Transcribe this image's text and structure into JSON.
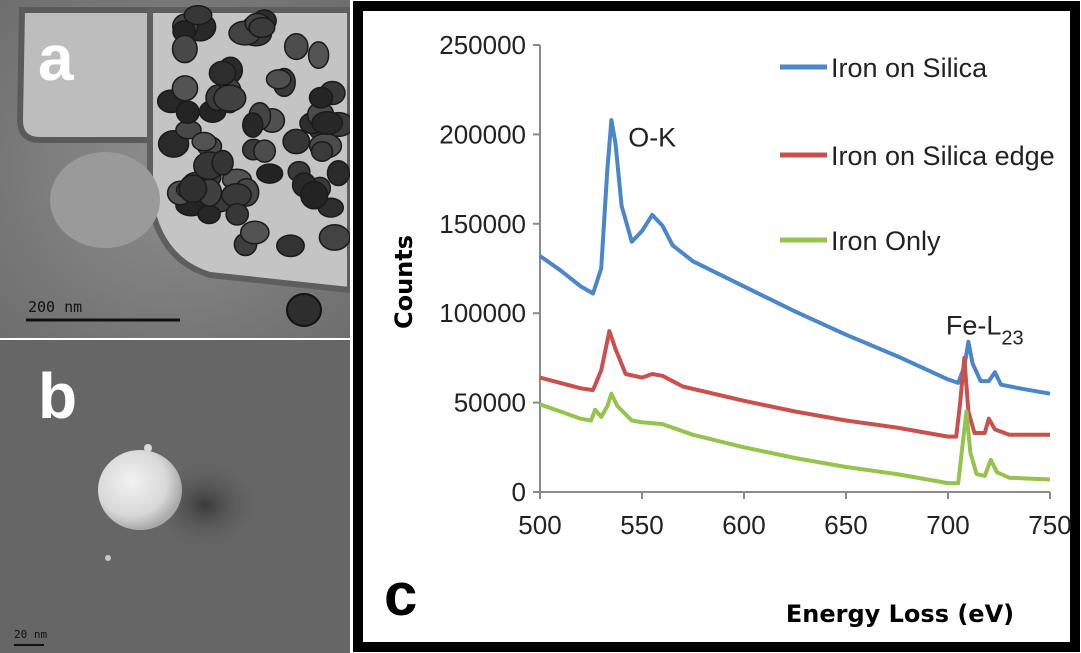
{
  "panel_a": {
    "letter": "a",
    "scale_label": "200 nm"
  },
  "panel_b": {
    "letter": "b",
    "scale_label": "20 nm"
  },
  "panel_c": {
    "letter": "c"
  },
  "colors": {
    "iron_on_silica": "#4a86c8",
    "iron_on_silica_edge": "#c9504c",
    "iron_only": "#96c24e"
  },
  "chart_data": {
    "type": "line",
    "title": "",
    "xlabel": "Energy Loss (eV)",
    "ylabel": "Counts",
    "xlim": [
      500,
      750
    ],
    "ylim": [
      0,
      250000
    ],
    "x_ticks": [
      "500",
      "550",
      "600",
      "650",
      "700",
      "750"
    ],
    "y_ticks": [
      "0",
      "50000",
      "100000",
      "150000",
      "200000",
      "250000"
    ],
    "grid": false,
    "legend_position": "top-right",
    "annotations": [
      {
        "text": "O-K",
        "x": 555,
        "y": 200000
      },
      {
        "text": "Fe-L",
        "subscript": "23",
        "x": 718,
        "y": 88000
      }
    ],
    "series": [
      {
        "name": "Iron on Silica",
        "color": "#4a86c8",
        "points": [
          [
            500,
            132000
          ],
          [
            510,
            124000
          ],
          [
            520,
            115000
          ],
          [
            526,
            111000
          ],
          [
            530,
            125000
          ],
          [
            533,
            180000
          ],
          [
            535,
            208000
          ],
          [
            537,
            195000
          ],
          [
            540,
            160000
          ],
          [
            545,
            140000
          ],
          [
            550,
            146000
          ],
          [
            555,
            155000
          ],
          [
            560,
            149000
          ],
          [
            565,
            138000
          ],
          [
            575,
            129000
          ],
          [
            600,
            115000
          ],
          [
            625,
            101000
          ],
          [
            650,
            88000
          ],
          [
            675,
            76000
          ],
          [
            700,
            63000
          ],
          [
            705,
            61000
          ],
          [
            708,
            70000
          ],
          [
            710,
            84000
          ],
          [
            712,
            72000
          ],
          [
            716,
            62000
          ],
          [
            720,
            62000
          ],
          [
            723,
            67000
          ],
          [
            726,
            60000
          ],
          [
            735,
            58000
          ],
          [
            750,
            55000
          ]
        ]
      },
      {
        "name": "Iron on Silica edge",
        "color": "#c9504c",
        "points": [
          [
            500,
            64000
          ],
          [
            510,
            61000
          ],
          [
            520,
            58000
          ],
          [
            526,
            57000
          ],
          [
            530,
            68000
          ],
          [
            534,
            90000
          ],
          [
            537,
            80000
          ],
          [
            542,
            66000
          ],
          [
            550,
            64000
          ],
          [
            555,
            66000
          ],
          [
            560,
            65000
          ],
          [
            570,
            59000
          ],
          [
            600,
            51000
          ],
          [
            625,
            45000
          ],
          [
            650,
            40000
          ],
          [
            675,
            36000
          ],
          [
            700,
            31000
          ],
          [
            704,
            31000
          ],
          [
            706,
            50000
          ],
          [
            708,
            75000
          ],
          [
            710,
            45000
          ],
          [
            713,
            33000
          ],
          [
            718,
            33000
          ],
          [
            720,
            41000
          ],
          [
            723,
            35000
          ],
          [
            730,
            32000
          ],
          [
            750,
            32000
          ]
        ]
      },
      {
        "name": "Iron Only",
        "color": "#96c24e",
        "points": [
          [
            500,
            49000
          ],
          [
            510,
            45000
          ],
          [
            520,
            41000
          ],
          [
            525,
            40000
          ],
          [
            527,
            46000
          ],
          [
            530,
            42000
          ],
          [
            533,
            48000
          ],
          [
            535,
            55000
          ],
          [
            538,
            48000
          ],
          [
            545,
            40000
          ],
          [
            550,
            39000
          ],
          [
            560,
            38000
          ],
          [
            575,
            32000
          ],
          [
            600,
            25000
          ],
          [
            625,
            19000
          ],
          [
            650,
            14000
          ],
          [
            675,
            10000
          ],
          [
            700,
            5000
          ],
          [
            705,
            5000
          ],
          [
            707,
            25000
          ],
          [
            709,
            45000
          ],
          [
            711,
            22000
          ],
          [
            714,
            10000
          ],
          [
            718,
            9000
          ],
          [
            721,
            18000
          ],
          [
            724,
            11000
          ],
          [
            730,
            8000
          ],
          [
            750,
            7000
          ]
        ]
      }
    ]
  }
}
